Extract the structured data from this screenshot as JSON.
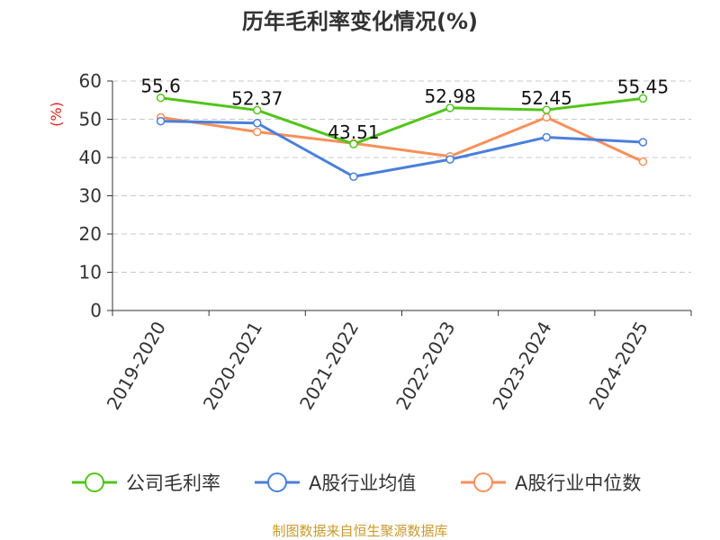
{
  "chart_data": {
    "type": "line",
    "title": "历年毛利率变化情况(%)",
    "ylabel": "(%)",
    "xlabel": "",
    "categories": [
      "2019-2020",
      "2020-2021",
      "2021-2022",
      "2022-2023",
      "2023-2024",
      "2024-2025"
    ],
    "ylim": [
      0,
      60
    ],
    "yticks": [
      0,
      10,
      20,
      30,
      40,
      50,
      60
    ],
    "grid": "horizontal-dashed",
    "legend_position": "bottom",
    "series": [
      {
        "name": "公司毛利率",
        "color": "#52c41a",
        "values": [
          55.6,
          52.37,
          43.51,
          52.98,
          52.45,
          55.45
        ],
        "labels": [
          "55.6",
          "52.37",
          "43.51",
          "52.98",
          "52.45",
          "55.45"
        ]
      },
      {
        "name": "A股行业均值",
        "color": "#4a7fdb",
        "values": [
          49.5,
          49.0,
          35.0,
          39.5,
          45.3,
          44.0
        ]
      },
      {
        "name": "A股行业中位数",
        "color": "#f7905a",
        "values": [
          50.5,
          46.7,
          43.7,
          40.3,
          50.5,
          38.9
        ]
      }
    ]
  },
  "source": "制图数据来自恒生聚源数据库"
}
